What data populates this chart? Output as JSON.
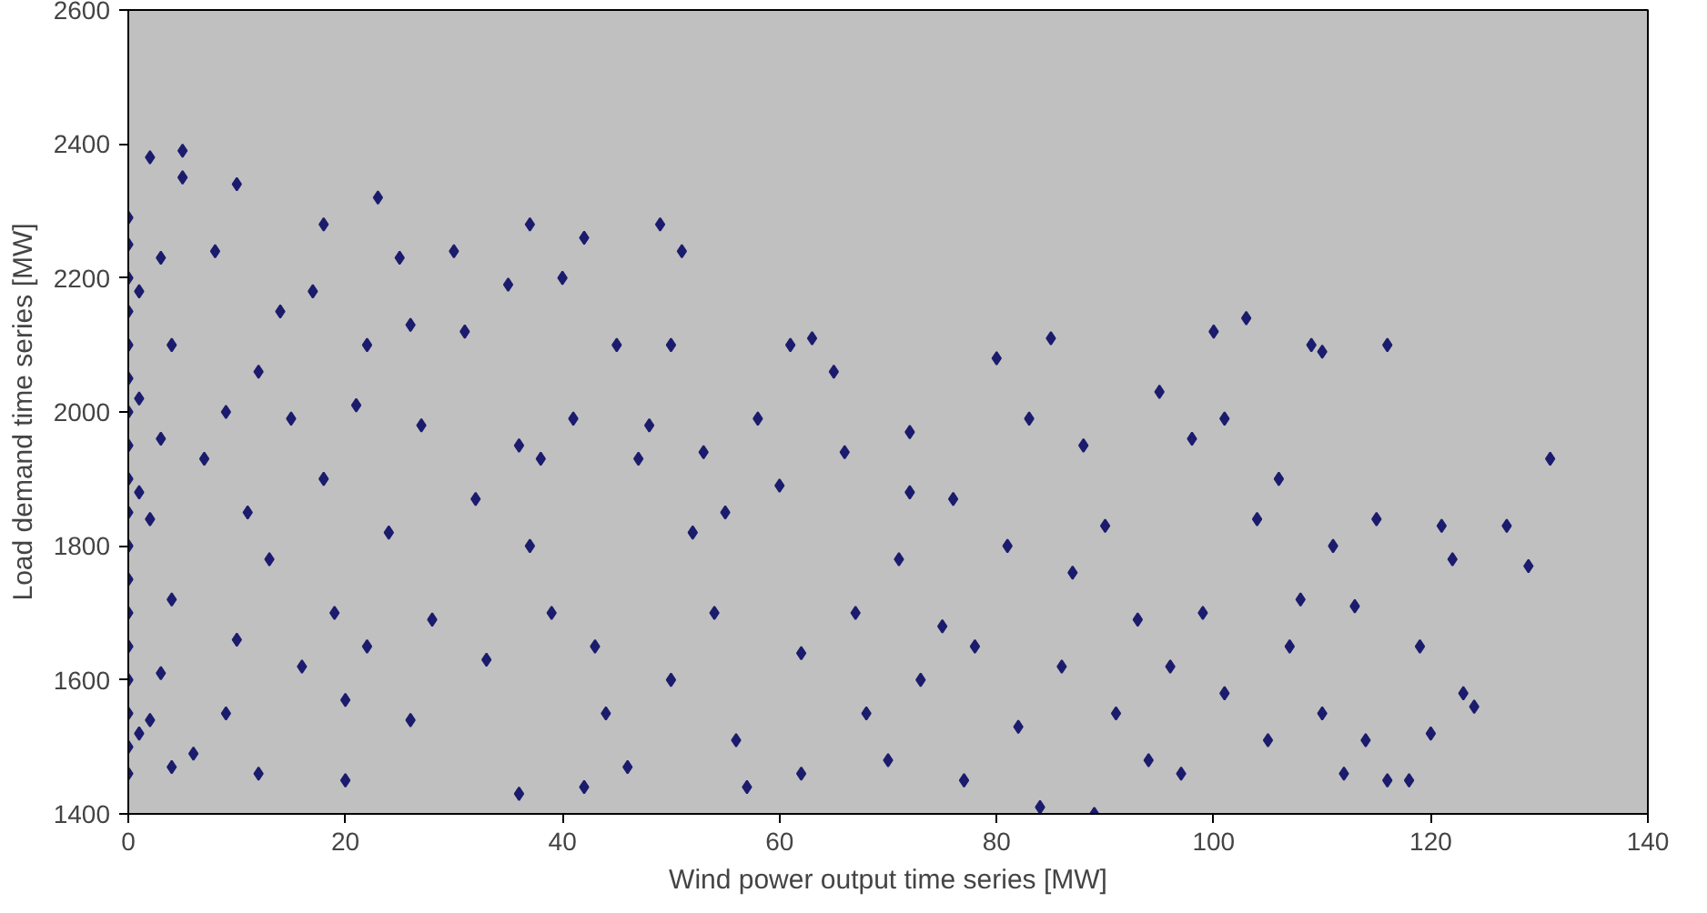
{
  "chart_data": {
    "type": "scatter",
    "xlabel": "Wind power output time series [MW]",
    "ylabel": "Load demand time series [MW]",
    "xlim": [
      0,
      140
    ],
    "xticks": [
      0,
      20,
      40,
      60,
      80,
      100,
      120,
      140
    ],
    "ylim": [
      1400,
      2600
    ],
    "yticks": [
      1400,
      1600,
      1800,
      2000,
      2200,
      2400,
      2600
    ],
    "grid": false,
    "marker": "diamond",
    "series": [
      {
        "color": "#1c1c6e",
        "x": [
          0,
          0,
          0,
          0,
          0,
          0,
          0,
          0,
          0,
          0,
          0,
          0,
          0,
          0,
          0,
          0,
          0,
          0,
          1,
          1,
          1,
          1,
          2,
          5,
          5,
          3,
          4,
          3,
          2,
          4,
          3,
          2,
          6,
          4,
          10,
          8,
          9,
          7,
          12,
          11,
          10,
          9,
          12,
          14,
          15,
          13,
          16,
          18,
          17,
          18,
          19,
          20,
          20,
          22,
          23,
          21,
          24,
          22,
          25,
          26,
          27,
          28,
          26,
          30,
          31,
          32,
          33,
          35,
          36,
          37,
          38,
          37,
          36,
          39,
          40,
          42,
          41,
          43,
          42,
          45,
          44,
          46,
          48,
          47,
          49,
          51,
          50,
          52,
          50,
          53,
          55,
          54,
          56,
          58,
          57,
          61,
          60,
          62,
          63,
          62,
          65,
          66,
          67,
          68,
          70,
          71,
          72,
          72,
          73,
          75,
          76,
          77,
          78,
          80,
          81,
          82,
          83,
          84,
          85,
          86,
          87,
          88,
          89,
          90,
          91,
          93,
          94,
          95,
          96,
          97,
          98,
          99,
          100,
          101,
          101,
          103,
          104,
          105,
          106,
          107,
          108,
          109,
          110,
          110,
          111,
          112,
          113,
          114,
          115,
          116,
          116,
          118,
          119,
          120,
          121,
          122,
          123,
          127,
          129,
          131,
          124
        ],
        "values": [
          2290,
          2250,
          2200,
          2150,
          2100,
          2050,
          2000,
          1950,
          1900,
          1850,
          1800,
          1750,
          1700,
          1650,
          1600,
          1550,
          1500,
          1460,
          2180,
          2020,
          1880,
          1520,
          2380,
          2390,
          2350,
          2230,
          2100,
          1960,
          1840,
          1720,
          1610,
          1540,
          1490,
          1470,
          2340,
          2240,
          2000,
          1930,
          2060,
          1850,
          1660,
          1550,
          1460,
          2150,
          1990,
          1780,
          1620,
          2280,
          2180,
          1900,
          1700,
          1450,
          1570,
          2100,
          2320,
          2010,
          1820,
          1650,
          2230,
          2130,
          1980,
          1690,
          1540,
          2240,
          2120,
          1870,
          1630,
          2190,
          1950,
          2280,
          1930,
          1800,
          1430,
          1700,
          2200,
          2260,
          1990,
          1650,
          1440,
          2100,
          1550,
          1470,
          1980,
          1930,
          2280,
          2240,
          2100,
          1820,
          1600,
          1940,
          1850,
          1700,
          1510,
          1990,
          1440,
          2100,
          1890,
          1640,
          2110,
          1460,
          2060,
          1940,
          1700,
          1550,
          1480,
          1780,
          1970,
          1880,
          1600,
          1680,
          1870,
          1450,
          1650,
          2080,
          1800,
          1530,
          1990,
          1410,
          2110,
          1620,
          1760,
          1950,
          1400,
          1830,
          1550,
          1690,
          1480,
          2030,
          1620,
          1460,
          1960,
          1700,
          2120,
          1580,
          1990,
          2140,
          1840,
          1510,
          1900,
          1650,
          1720,
          2100,
          2090,
          1550,
          1800,
          1460,
          1710,
          1510,
          1840,
          2100,
          1450,
          1450,
          1650,
          1520,
          1830,
          1780,
          1580,
          1830,
          1770,
          1930,
          1560
        ]
      }
    ]
  }
}
